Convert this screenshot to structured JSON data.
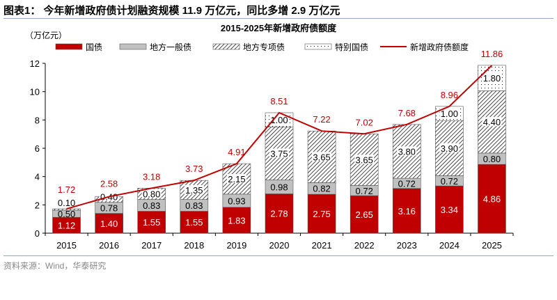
{
  "header": {
    "title": "图表1：  今年新增政府债计划融资规模 11.9 万亿元，同比多增 2.9 万亿元"
  },
  "footer": {
    "source": "资料来源：Wind，华泰研究"
  },
  "chart_data": {
    "type": "bar",
    "title": "2015-2025年新增政府债额度",
    "ylabel": "（万亿元）",
    "ylim": [
      0,
      12
    ],
    "yticks": [
      0,
      2,
      4,
      6,
      8,
      10,
      12
    ],
    "categories": [
      "2015",
      "2016",
      "2017",
      "2018",
      "2019",
      "2020",
      "2021",
      "2022",
      "2023",
      "2024",
      "2025"
    ],
    "series": [
      {
        "name": "国债",
        "color": "#c00000",
        "values": [
          1.12,
          1.4,
          1.55,
          1.55,
          1.83,
          2.78,
          2.75,
          2.65,
          3.16,
          3.34,
          4.86
        ]
      },
      {
        "name": "地方一般债",
        "color": "#c0c0c0",
        "values": [
          0.5,
          0.78,
          0.83,
          0.83,
          0.93,
          0.98,
          0.82,
          0.72,
          0.72,
          0.72,
          0.8
        ]
      },
      {
        "name": "地方专项债",
        "color": "hatch",
        "values": [
          0.1,
          0.4,
          0.8,
          1.35,
          2.15,
          3.75,
          3.65,
          3.65,
          3.8,
          3.9,
          4.4
        ]
      },
      {
        "name": "特别国债",
        "color": "dots",
        "values": [
          null,
          null,
          null,
          null,
          null,
          1.0,
          null,
          null,
          null,
          1.0,
          1.8
        ]
      }
    ],
    "line": {
      "name": "新增政府债额度",
      "color": "#c00000",
      "values": [
        1.72,
        2.58,
        3.18,
        3.73,
        4.91,
        8.51,
        7.22,
        7.02,
        7.68,
        8.96,
        11.86
      ]
    },
    "legend": "top"
  }
}
